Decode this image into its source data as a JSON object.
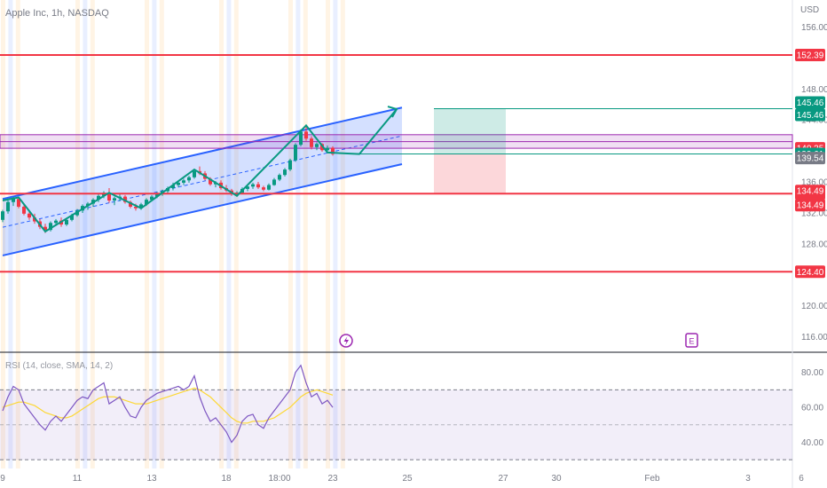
{
  "chart_data": {
    "type": "candlestick",
    "symbol_label": "Apple Inc, 1h, NASDAQ",
    "currency": "USD",
    "x_tick_labels": [
      {
        "label": "9",
        "bar": 0
      },
      {
        "label": "11",
        "bar": 14
      },
      {
        "label": "13",
        "bar": 28
      },
      {
        "label": "18",
        "bar": 42
      },
      {
        "label": "18:00",
        "bar": 52
      },
      {
        "label": "23",
        "bar": 62
      },
      {
        "label": "25",
        "bar": 76
      },
      {
        "label": "27",
        "bar": 94
      },
      {
        "label": "30",
        "bar": 104
      },
      {
        "label": "Feb",
        "bar": 122
      },
      {
        "label": "3",
        "bar": 140
      },
      {
        "label": "6",
        "bar": 150
      }
    ],
    "price_axis": {
      "ticks": [
        {
          "value": 156.0,
          "label": "156.00"
        },
        {
          "value": 148.0,
          "label": "148.00"
        },
        {
          "value": 144.0,
          "label": "144.00"
        },
        {
          "value": 136.0,
          "label": "136.00"
        },
        {
          "value": 132.0,
          "label": "132.00"
        },
        {
          "value": 128.0,
          "label": "128.00"
        },
        {
          "value": 120.0,
          "label": "120.00"
        },
        {
          "value": 116.0,
          "label": "116.00"
        }
      ],
      "ylim": [
        114.0,
        159.5
      ]
    },
    "ohlc": [
      [
        131.1,
        132.4,
        130.8,
        132.2
      ],
      [
        132.2,
        133.6,
        131.9,
        133.4
      ],
      [
        133.4,
        134.1,
        132.9,
        133.8
      ],
      [
        133.8,
        134.0,
        132.6,
        132.8
      ],
      [
        132.8,
        133.1,
        131.7,
        131.9
      ],
      [
        131.9,
        132.3,
        131.1,
        131.4
      ],
      [
        131.4,
        131.9,
        130.6,
        130.9
      ],
      [
        130.9,
        131.2,
        129.9,
        130.2
      ],
      [
        130.2,
        130.6,
        129.4,
        129.8
      ],
      [
        129.8,
        130.9,
        129.6,
        130.7
      ],
      [
        130.7,
        131.2,
        130.3,
        131.0
      ],
      [
        131.0,
        131.4,
        130.2,
        130.5
      ],
      [
        130.5,
        131.3,
        130.3,
        131.1
      ],
      [
        131.1,
        131.9,
        130.9,
        131.7
      ],
      [
        131.7,
        132.5,
        131.5,
        132.3
      ],
      [
        132.3,
        133.1,
        132.0,
        132.9
      ],
      [
        132.9,
        133.4,
        132.4,
        133.2
      ],
      [
        133.2,
        133.9,
        132.8,
        133.7
      ],
      [
        133.7,
        134.4,
        133.4,
        134.2
      ],
      [
        134.2,
        134.8,
        133.9,
        134.6
      ],
      [
        134.6,
        135.2,
        133.3,
        133.6
      ],
      [
        133.6,
        134.1,
        133.0,
        133.9
      ],
      [
        133.9,
        134.4,
        133.5,
        134.1
      ],
      [
        134.1,
        134.3,
        133.2,
        133.4
      ],
      [
        133.4,
        133.6,
        132.6,
        132.8
      ],
      [
        132.8,
        133.2,
        132.3,
        132.6
      ],
      [
        132.6,
        133.3,
        132.4,
        133.1
      ],
      [
        133.1,
        133.9,
        132.9,
        133.7
      ],
      [
        133.7,
        134.3,
        133.5,
        134.1
      ],
      [
        134.1,
        134.7,
        133.9,
        134.5
      ],
      [
        134.5,
        135.0,
        134.2,
        134.8
      ],
      [
        134.8,
        135.4,
        134.5,
        135.2
      ],
      [
        135.2,
        135.9,
        134.9,
        135.6
      ],
      [
        135.6,
        136.1,
        135.3,
        135.9
      ],
      [
        135.9,
        136.4,
        135.6,
        136.2
      ],
      [
        136.2,
        136.8,
        135.9,
        136.6
      ],
      [
        136.6,
        137.6,
        136.4,
        137.4
      ],
      [
        137.4,
        138.0,
        136.9,
        137.1
      ],
      [
        137.1,
        137.4,
        136.2,
        136.4
      ],
      [
        136.4,
        136.6,
        135.5,
        135.7
      ],
      [
        135.7,
        136.1,
        135.3,
        135.9
      ],
      [
        135.9,
        136.2,
        135.0,
        135.2
      ],
      [
        135.2,
        135.6,
        134.7,
        134.9
      ],
      [
        134.9,
        135.1,
        134.2,
        134.4
      ],
      [
        134.4,
        134.8,
        134.1,
        134.6
      ],
      [
        134.6,
        135.3,
        134.4,
        135.1
      ],
      [
        135.1,
        135.7,
        134.8,
        135.4
      ],
      [
        135.4,
        135.9,
        135.1,
        135.7
      ],
      [
        135.7,
        136.0,
        135.1,
        135.3
      ],
      [
        135.3,
        135.5,
        134.8,
        135.0
      ],
      [
        135.0,
        135.8,
        134.9,
        135.6
      ],
      [
        135.6,
        136.5,
        135.5,
        136.3
      ],
      [
        136.3,
        137.1,
        136.1,
        136.9
      ],
      [
        136.9,
        137.8,
        136.7,
        137.6
      ],
      [
        137.6,
        139.0,
        137.4,
        138.8
      ],
      [
        138.8,
        141.0,
        138.6,
        140.8
      ],
      [
        140.8,
        142.8,
        140.6,
        142.5
      ],
      [
        142.5,
        143.3,
        141.3,
        141.6
      ],
      [
        141.6,
        141.9,
        140.2,
        140.5
      ],
      [
        140.5,
        141.1,
        140.1,
        140.9
      ],
      [
        140.9,
        141.0,
        139.9,
        140.1
      ],
      [
        140.1,
        140.7,
        139.8,
        140.4
      ],
      [
        140.4,
        140.6,
        139.4,
        139.6
      ]
    ],
    "horizontal_levels": [
      {
        "price": 152.39,
        "label": "152.39",
        "color": "#f23645",
        "label_bg": "#f23645"
      },
      {
        "price": 134.49,
        "label": "134.49",
        "color": "#f23645",
        "label_bg": "#f23645"
      },
      {
        "price": 124.4,
        "label": "124.40",
        "color": "#f23645",
        "label_bg": "#f23645"
      }
    ],
    "price_tags": [
      {
        "price": 145.46,
        "label": "145.46",
        "bg": "#089981",
        "offset": -7
      },
      {
        "price": 145.46,
        "label": "145.46",
        "bg": "#089981",
        "offset": 7
      },
      {
        "price": 140.35,
        "label": "140.35",
        "bg": "#f23645",
        "offset": 0
      },
      {
        "price": 139.61,
        "label": "139.61",
        "bg": "#089981",
        "offset": 0
      },
      {
        "price": 139.54,
        "label": "139.54",
        "bg": "#787b86",
        "offset": 4
      },
      {
        "price": 134.49,
        "label": "134.49",
        "bg": "#f23645",
        "offset": -3
      },
      {
        "price": 134.49,
        "label": "134.49",
        "bg": "#f23645",
        "offset": 13
      }
    ],
    "rsi": {
      "label": "RSI (14, close, SMA, 14, 2)",
      "ylim": [
        25,
        90
      ],
      "ticks": [
        {
          "value": 80,
          "label": "80.00"
        },
        {
          "value": 60,
          "label": "60.00"
        },
        {
          "value": 40,
          "label": "40.00"
        }
      ],
      "band_upper": 70,
      "band_lower": 30,
      "mid": 50,
      "values": [
        58,
        66,
        72,
        70,
        62,
        58,
        54,
        50,
        47,
        52,
        55,
        52,
        56,
        60,
        64,
        66,
        65,
        70,
        72,
        74,
        62,
        64,
        66,
        60,
        55,
        54,
        60,
        64,
        66,
        68,
        69,
        70,
        71,
        72,
        70,
        72,
        78,
        66,
        58,
        52,
        54,
        50,
        46,
        40,
        44,
        52,
        55,
        56,
        50,
        48,
        54,
        58,
        62,
        66,
        70,
        80,
        84,
        74,
        66,
        68,
        62,
        64,
        60
      ],
      "ma": [
        60,
        61,
        62,
        63,
        63,
        62,
        61,
        59,
        57,
        56,
        55,
        54,
        54,
        55,
        57,
        59,
        61,
        63,
        65,
        66,
        66,
        66,
        65,
        64,
        63,
        62,
        62,
        62,
        63,
        64,
        65,
        66,
        67,
        68,
        69,
        70,
        71,
        70,
        68,
        66,
        63,
        60,
        57,
        54,
        52,
        51,
        51,
        52,
        52,
        52,
        53,
        54,
        56,
        58,
        60,
        63,
        66,
        68,
        69,
        70,
        69,
        68,
        67
      ]
    }
  }
}
